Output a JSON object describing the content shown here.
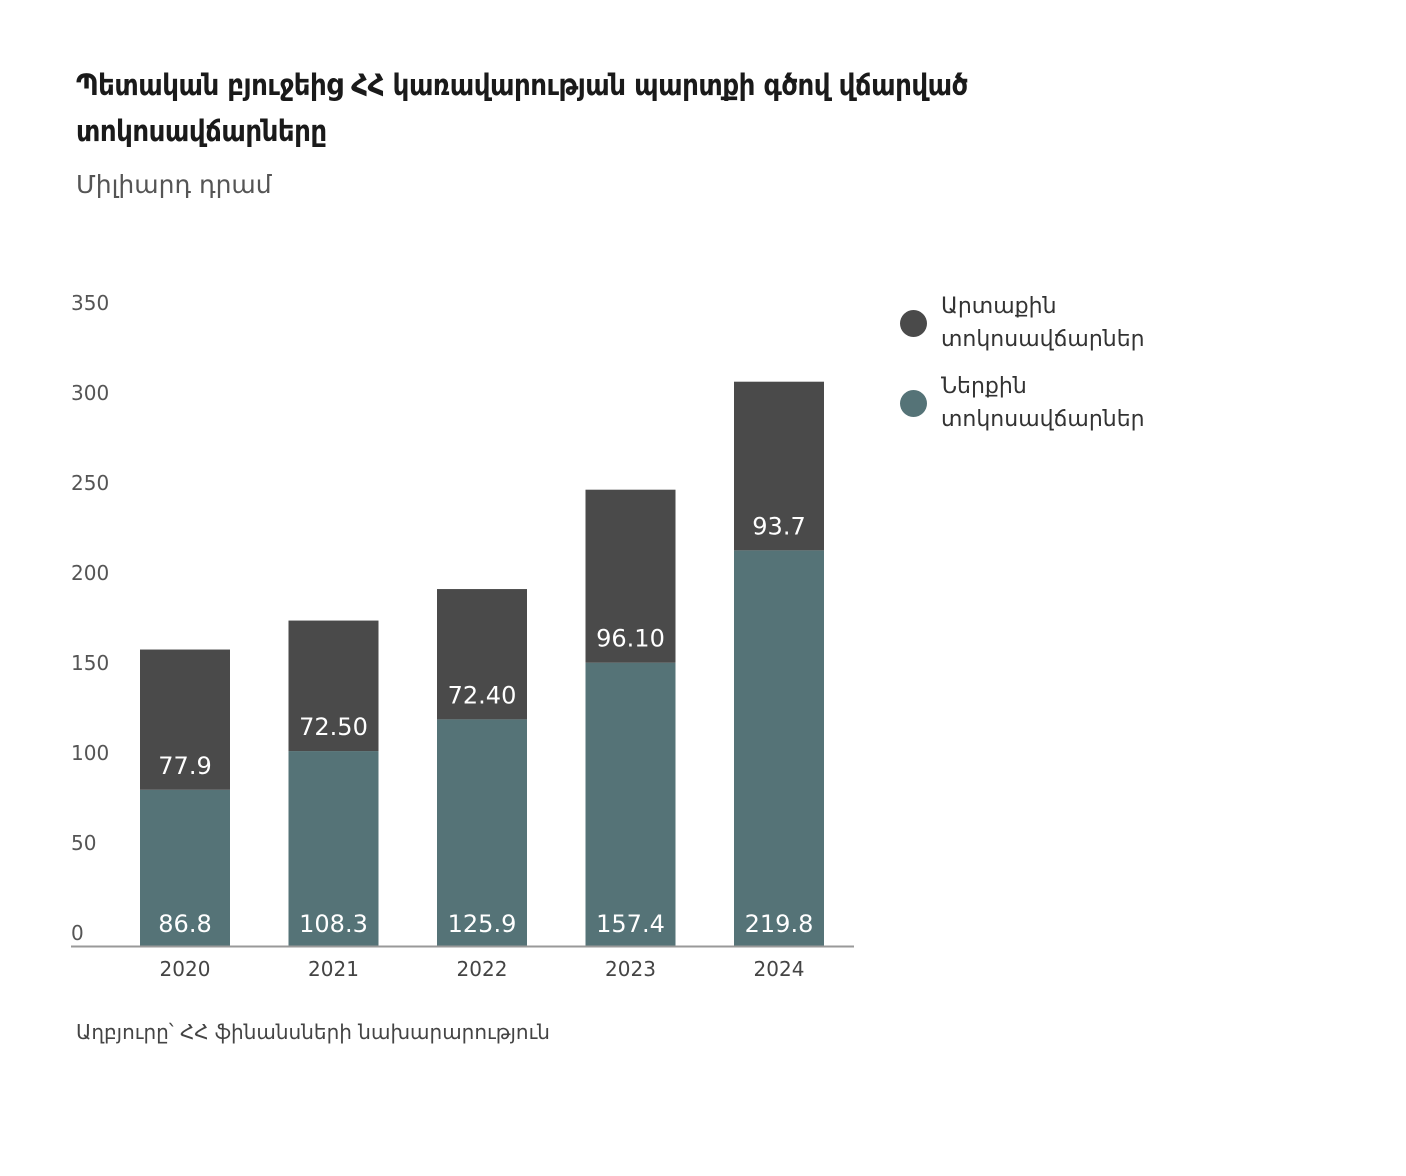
{
  "chart_data": {
    "type": "bar",
    "stacked": true,
    "title": "Պետական բյուջեից ՀՀ կառավարության պարտքի գծով վճարված տոկոսավճարները",
    "subtitle": "Միլիարդ դրամ",
    "source": "Աղբյուրը՝ ՀՀ ֆինանսների նախարարություն",
    "categories": [
      "2020",
      "2021",
      "2022",
      "2023",
      "2024"
    ],
    "yticks": [
      0,
      50,
      100,
      150,
      200,
      250,
      300,
      350
    ],
    "ylim": [
      0,
      350
    ],
    "grid": false,
    "legend_position": "right",
    "series": [
      {
        "name": "Ներքին տոկոսավճարներ",
        "color": "#557377",
        "values": [
          86.8,
          108.3,
          125.9,
          157.4,
          219.8
        ],
        "labels": [
          "86.8",
          "108.3",
          "125.9",
          "157.4",
          "219.8"
        ]
      },
      {
        "name": "Արտաքին տոկոսավճարներ",
        "color": "#4a4a4a",
        "values": [
          77.9,
          72.5,
          72.4,
          96.1,
          93.7
        ],
        "labels": [
          "77.9",
          "72.50",
          "72.40",
          "96.10",
          "93.7"
        ]
      }
    ]
  }
}
